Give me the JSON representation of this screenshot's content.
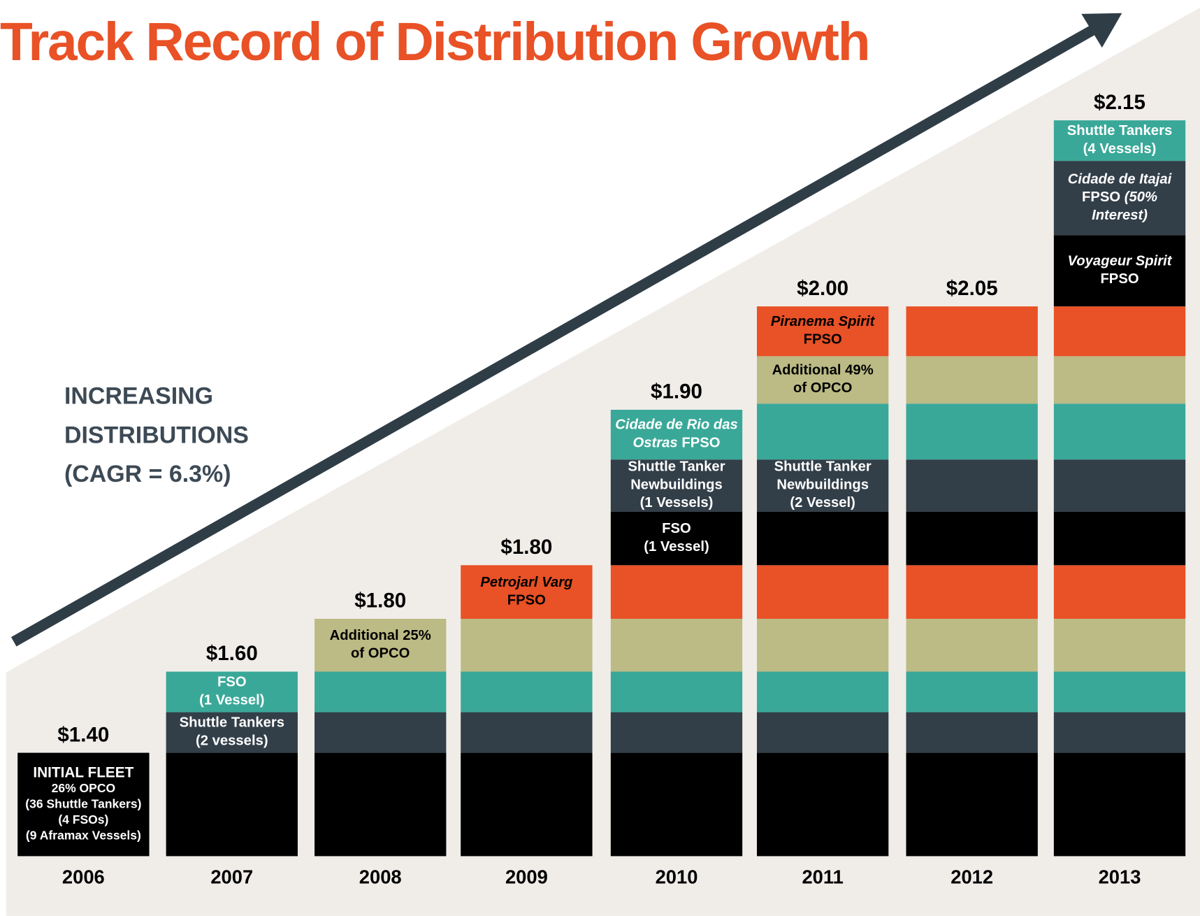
{
  "title": "Track Record of Distribution Growth",
  "annotation": [
    "INCREASING",
    "DISTRIBUTIONS",
    "(CAGR = 6.3%)"
  ],
  "columns": [
    {
      "year": "2006",
      "total": "$1.40",
      "segments": [
        [
          [
            "INITIAL FLEET"
          ],
          [
            "26% OPCO"
          ],
          [
            "(36 Shuttle Tankers)"
          ],
          [
            "(4 FSOs)"
          ],
          [
            "(9 Aframax Vessels)"
          ]
        ]
      ]
    },
    {
      "year": "2007",
      "total": "$1.60",
      "segments": [
        null,
        [
          [
            "Shuttle Tankers"
          ],
          [
            "(2 vessels)"
          ]
        ],
        [
          [
            "FSO"
          ],
          [
            "(1 Vessel)"
          ]
        ]
      ]
    },
    {
      "year": "2008",
      "total": "$1.80",
      "segments": [
        null,
        null,
        null,
        [
          [
            "Additional 25%"
          ],
          [
            "of OPCO"
          ]
        ]
      ]
    },
    {
      "year": "2009",
      "total": "$1.80",
      "segments": [
        null,
        null,
        null,
        null,
        [
          [
            {
              "text": "Petrojarl Varg",
              "italic": true
            }
          ],
          [
            "FPSO"
          ]
        ]
      ]
    },
    {
      "year": "2010",
      "total": "$1.90",
      "segments": [
        null,
        null,
        null,
        null,
        null,
        [
          [
            "FSO"
          ],
          [
            "(1 Vessel)"
          ]
        ],
        [
          [
            "Shuttle Tanker"
          ],
          [
            "Newbuildings"
          ],
          [
            "(1 Vessels)"
          ]
        ],
        [
          [
            {
              "text": "Cidade de Rio das",
              "italic": true
            }
          ],
          [
            {
              "text": "Ostras",
              "italic": true
            },
            " FPSO"
          ]
        ]
      ]
    },
    {
      "year": "2011",
      "total": "$2.00",
      "segments": [
        null,
        null,
        null,
        null,
        null,
        null,
        [
          [
            "Shuttle Tanker"
          ],
          [
            "Newbuildings"
          ],
          [
            "(2 Vessel)"
          ]
        ],
        null,
        [
          [
            "Additional 49%"
          ],
          [
            "of OPCO"
          ]
        ],
        [
          [
            {
              "text": "Piranema Spirit",
              "italic": true
            }
          ],
          [
            "FPSO"
          ]
        ]
      ]
    },
    {
      "year": "2012",
      "total": "$2.05",
      "segments": [
        null,
        null,
        null,
        null,
        null,
        null,
        null,
        null,
        null,
        null
      ]
    },
    {
      "year": "2013",
      "total": "$2.15",
      "segments": [
        null,
        null,
        null,
        null,
        null,
        null,
        null,
        null,
        null,
        null,
        [
          [
            {
              "text": "Voyageur Spirit",
              "italic": true
            }
          ],
          [
            "FPSO"
          ]
        ],
        [
          [
            {
              "text": "Cidade de Itajai",
              "italic": true
            }
          ],
          [
            "FPSO ",
            {
              "text": "(50%",
              "italic": true
            }
          ],
          [
            {
              "text": "Interest)",
              "italic": true
            }
          ]
        ],
        [
          [
            "Shuttle Tankers"
          ],
          [
            "(4 Vessels)"
          ]
        ]
      ]
    }
  ]
}
